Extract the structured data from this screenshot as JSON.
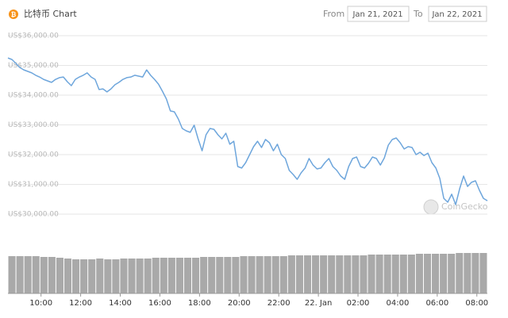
{
  "chart_data": {
    "type": "line",
    "title": "比特币 Chart",
    "from_label": "From",
    "from_date": "Jan 21, 2021",
    "to_label": "To",
    "to_date": "Jan 22, 2021",
    "watermark": "CoinGecko",
    "color": "#6ea6dc",
    "grid": true,
    "xlim": [
      8.33,
      32.53
    ],
    "xticks": [
      {
        "value": 10,
        "label": "10:00"
      },
      {
        "value": 12,
        "label": "12:00"
      },
      {
        "value": 14,
        "label": "14:00"
      },
      {
        "value": 16,
        "label": "16:00"
      },
      {
        "value": 18,
        "label": "18:00"
      },
      {
        "value": 20,
        "label": "20:00"
      },
      {
        "value": 22,
        "label": "22:00"
      },
      {
        "value": 24,
        "label": "22. Jan"
      },
      {
        "value": 26,
        "label": "02:00"
      },
      {
        "value": 28,
        "label": "04:00"
      },
      {
        "value": 30,
        "label": "06:00"
      },
      {
        "value": 32,
        "label": "08:00"
      }
    ],
    "ylim": [
      30000,
      36000
    ],
    "yticks": [
      {
        "value": 30000,
        "label": "US$30,000.00"
      },
      {
        "value": 31000,
        "label": "US$31,000.00"
      },
      {
        "value": 32000,
        "label": "US$32,000.00"
      },
      {
        "value": 33000,
        "label": "US$33,000.00"
      },
      {
        "value": 34000,
        "label": "US$34,000.00"
      },
      {
        "value": 35000,
        "label": "US$35,000.00"
      },
      {
        "value": 36000,
        "label": "US$36,000.00"
      }
    ],
    "x": [
      8.33,
      8.53,
      8.73,
      8.93,
      9.13,
      9.33,
      9.53,
      9.73,
      9.93,
      10.13,
      10.33,
      10.53,
      10.73,
      10.93,
      11.13,
      11.33,
      11.53,
      11.73,
      11.93,
      12.13,
      12.33,
      12.53,
      12.73,
      12.93,
      13.13,
      13.33,
      13.53,
      13.73,
      13.93,
      14.13,
      14.33,
      14.53,
      14.73,
      14.93,
      15.13,
      15.33,
      15.53,
      15.73,
      15.93,
      16.13,
      16.33,
      16.53,
      16.73,
      16.93,
      17.13,
      17.33,
      17.53,
      17.73,
      17.93,
      18.13,
      18.33,
      18.53,
      18.73,
      18.93,
      19.13,
      19.33,
      19.53,
      19.73,
      19.93,
      20.13,
      20.33,
      20.53,
      20.73,
      20.93,
      21.13,
      21.33,
      21.53,
      21.73,
      21.93,
      22.13,
      22.33,
      22.53,
      22.73,
      22.93,
      23.13,
      23.33,
      23.53,
      23.73,
      23.93,
      24.13,
      24.33,
      24.53,
      24.73,
      24.93,
      25.13,
      25.33,
      25.53,
      25.73,
      25.93,
      26.13,
      26.33,
      26.53,
      26.73,
      26.93,
      27.13,
      27.33,
      27.53,
      27.73,
      27.93,
      28.13,
      28.33,
      28.53,
      28.73,
      28.93,
      29.13,
      29.33,
      29.53,
      29.73,
      29.93,
      30.13,
      30.33,
      30.53,
      30.73,
      30.93,
      31.13,
      31.33,
      31.53,
      31.73,
      31.93,
      32.13,
      32.33,
      32.53
    ],
    "values": [
      35250,
      35200,
      35070,
      34930,
      34850,
      34800,
      34750,
      34670,
      34610,
      34530,
      34480,
      34430,
      34530,
      34590,
      34610,
      34450,
      34320,
      34530,
      34610,
      34670,
      34750,
      34610,
      34530,
      34190,
      34210,
      34110,
      34210,
      34350,
      34430,
      34530,
      34590,
      34610,
      34670,
      34640,
      34610,
      34850,
      34670,
      34530,
      34370,
      34130,
      33870,
      33470,
      33440,
      33200,
      32880,
      32800,
      32750,
      32990,
      32530,
      32130,
      32670,
      32880,
      32850,
      32670,
      32530,
      32720,
      32350,
      32450,
      31600,
      31550,
      31730,
      32000,
      32270,
      32450,
      32240,
      32510,
      32400,
      32130,
      32350,
      32000,
      31870,
      31470,
      31330,
      31170,
      31390,
      31550,
      31870,
      31650,
      31520,
      31550,
      31730,
      31870,
      31600,
      31470,
      31280,
      31170,
      31600,
      31870,
      31920,
      31600,
      31550,
      31710,
      31920,
      31870,
      31650,
      31890,
      32320,
      32510,
      32560,
      32400,
      32190,
      32270,
      32240,
      32000,
      32080,
      31970,
      32050,
      31730,
      31550,
      31200,
      30530,
      30400,
      30670,
      30320,
      30850,
      31280,
      30930,
      31070,
      31120,
      30800,
      30530,
      30450
    ],
    "volume": {
      "color": "#a9a9a9",
      "ylim": [
        0,
        60
      ],
      "values": [
        47,
        47,
        47,
        47,
        46,
        46,
        45,
        44,
        43,
        43,
        43,
        44,
        43,
        43,
        44,
        44,
        44,
        44,
        45,
        45,
        45,
        45,
        45,
        45,
        46,
        46,
        46,
        46,
        46,
        47,
        47,
        47,
        47,
        47,
        47,
        48,
        48,
        48,
        48,
        48,
        48,
        48,
        48,
        48,
        48,
        49,
        49,
        49,
        49,
        49,
        49,
        50,
        50,
        50,
        50,
        50,
        51,
        51,
        51,
        51
      ]
    }
  }
}
